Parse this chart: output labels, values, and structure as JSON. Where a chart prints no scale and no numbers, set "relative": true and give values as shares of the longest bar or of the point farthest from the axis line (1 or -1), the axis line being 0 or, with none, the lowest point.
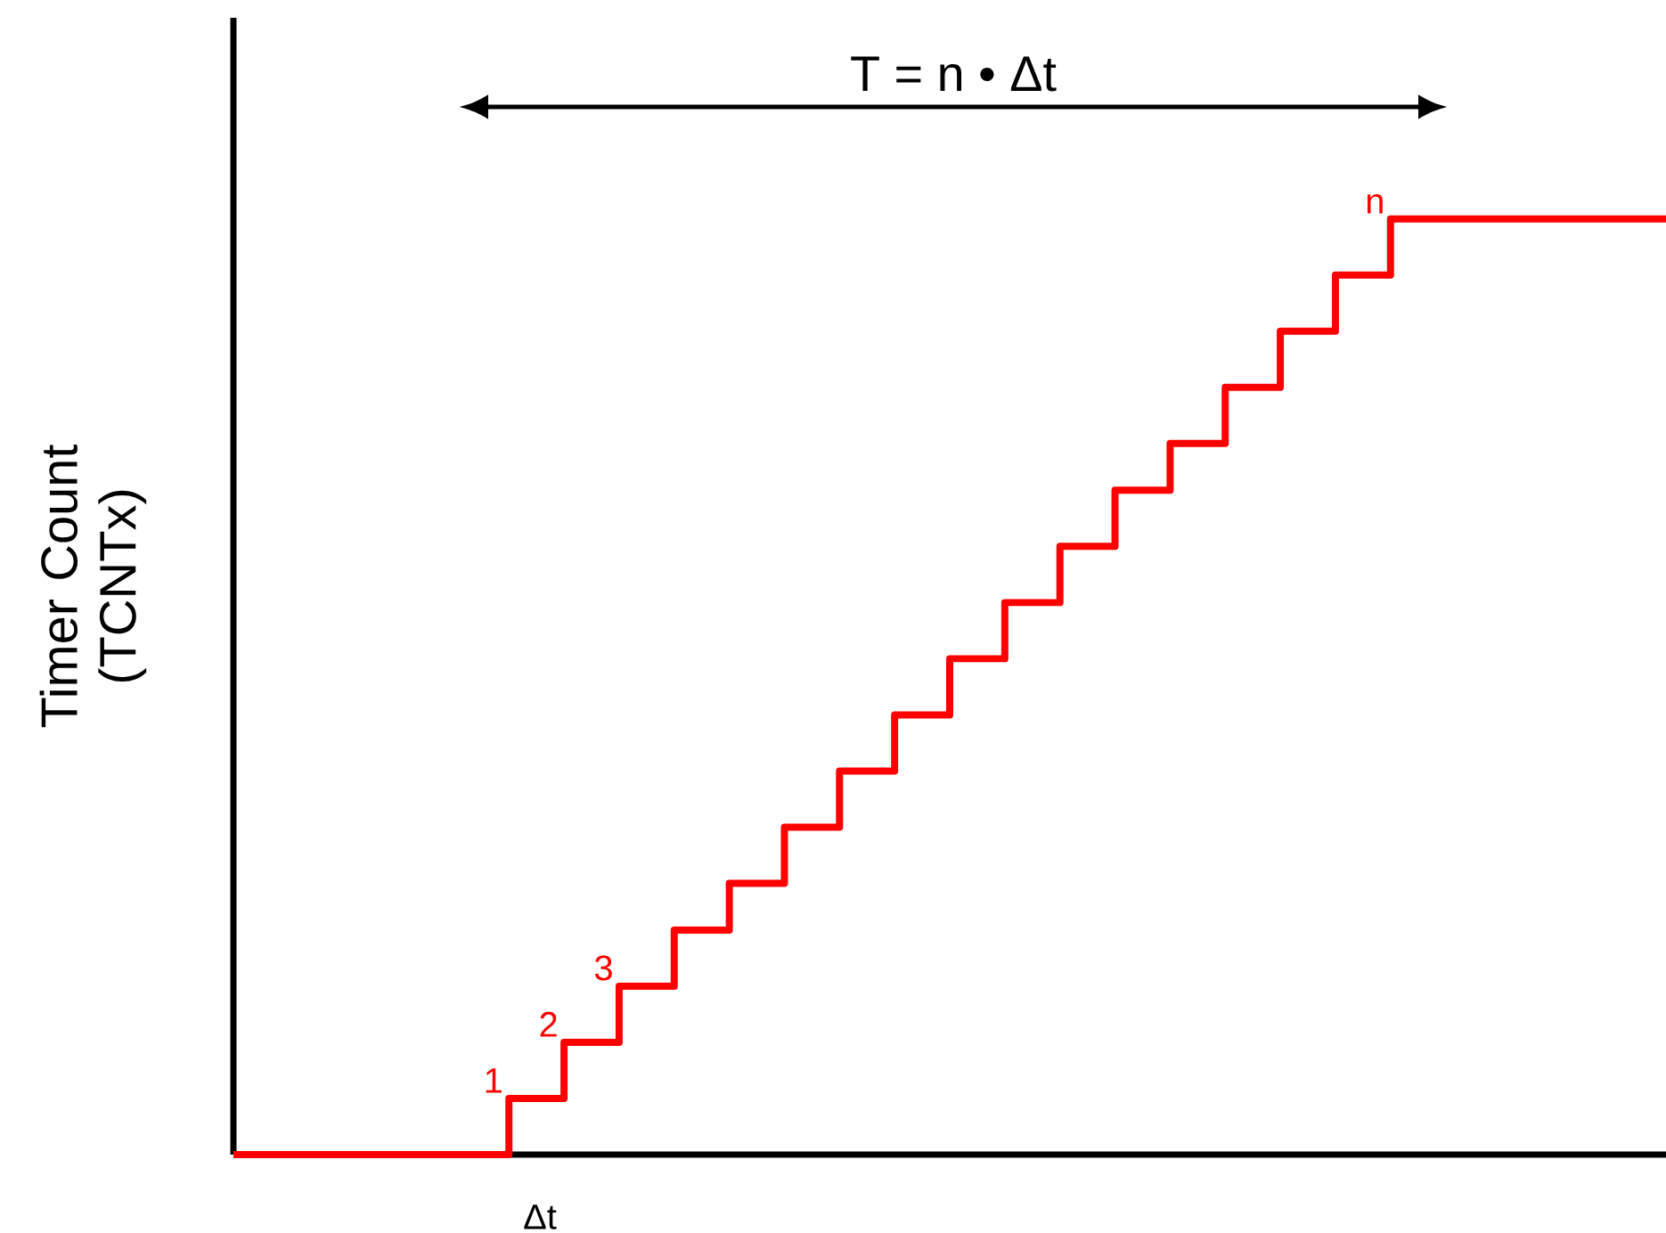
{
  "chart_data": {
    "type": "step",
    "relative": true,
    "ylabel": "Timer Count (TCNTx)",
    "color": "#ff0000",
    "categories": [
      null,
      null,
      null,
      null,
      null,
      null,
      null,
      null,
      null,
      null,
      null,
      null,
      null,
      null,
      null,
      null,
      null,
      null,
      null,
      null,
      null,
      null,
      null,
      null,
      null,
      null,
      null
    ],
    "values": [
      0,
      0,
      0,
      0,
      0,
      0.06,
      0.12,
      0.18,
      0.24,
      0.29,
      0.35,
      0.41,
      0.47,
      0.53,
      0.59,
      0.65,
      0.71,
      0.76,
      0.82,
      0.88,
      0.94,
      1,
      1,
      1,
      1,
      1,
      1
    ],
    "annotations": [
      "1",
      "2",
      "3",
      "n",
      "T = n • Δt",
      "Δt"
    ]
  }
}
